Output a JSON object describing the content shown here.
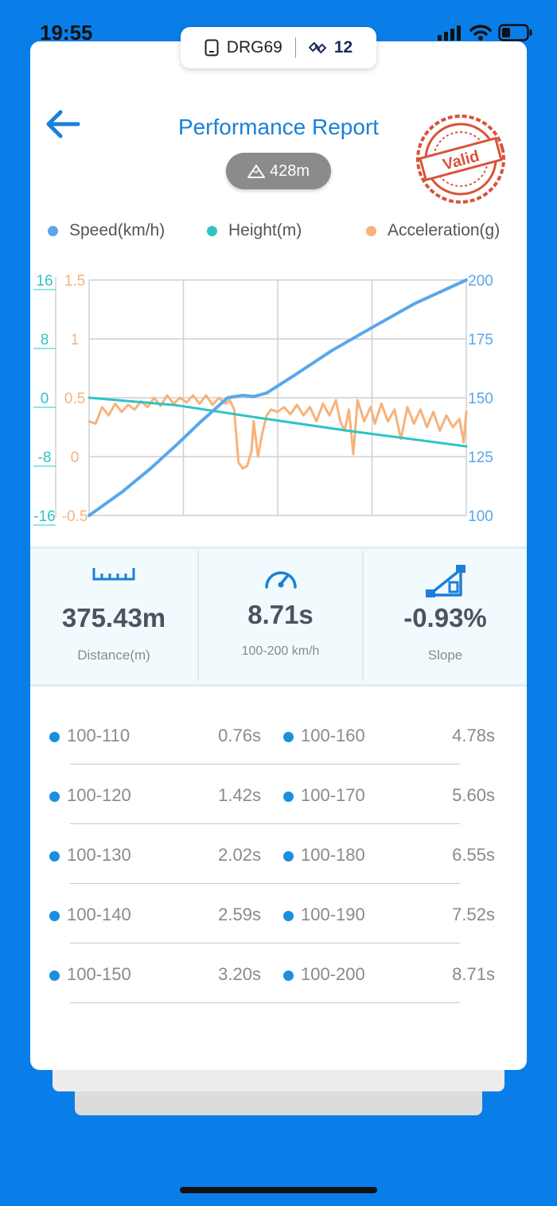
{
  "status_bar": {
    "time": "19:55"
  },
  "device": {
    "name": "DRG69",
    "satellites": "12"
  },
  "header": {
    "title": "Performance Report",
    "stamp_text": "Valid",
    "altitude": "428m"
  },
  "colors": {
    "speed": "#5aa7ea",
    "height": "#2ec4c4",
    "acceleration": "#f7b27a",
    "accent": "#1b7fd8",
    "background": "#0a7ee8"
  },
  "legend": [
    {
      "label": "Speed(km/h)",
      "color": "#5aa7ea"
    },
    {
      "label": "Height(m)",
      "color": "#2ec4c4"
    },
    {
      "label": "Acceleration(g)",
      "color": "#f7b27a"
    }
  ],
  "chart_data": {
    "type": "line",
    "x_range": [
      0,
      8.71
    ],
    "grid": true,
    "axes": {
      "height": {
        "ticks": [
          "16",
          "8",
          "0",
          "-8",
          "-16"
        ],
        "range": [
          -16,
          16
        ]
      },
      "acceleration": {
        "ticks": [
          "1.5",
          "1",
          "0.5",
          "0",
          "-0.5"
        ],
        "range": [
          -0.5,
          1.5
        ]
      },
      "speed": {
        "ticks": [
          "200",
          "175",
          "150",
          "125",
          "100"
        ],
        "range": [
          100,
          200
        ]
      }
    },
    "series": [
      {
        "name": "Speed(km/h)",
        "axis": "speed",
        "points": [
          [
            0,
            100
          ],
          [
            0.76,
            110
          ],
          [
            1.42,
            120
          ],
          [
            2.02,
            130
          ],
          [
            2.59,
            140
          ],
          [
            3.2,
            150
          ],
          [
            3.55,
            151
          ],
          [
            3.8,
            150.5
          ],
          [
            4.1,
            152
          ],
          [
            4.78,
            160
          ],
          [
            5.6,
            170
          ],
          [
            6.55,
            180
          ],
          [
            7.52,
            190
          ],
          [
            8.71,
            200
          ]
        ]
      },
      {
        "name": "Height(m)",
        "axis": "height",
        "points": [
          [
            0,
            0
          ],
          [
            2,
            -1
          ],
          [
            4,
            -2.8
          ],
          [
            6,
            -4.5
          ],
          [
            8.71,
            -6.6
          ]
        ]
      },
      {
        "name": "Acceleration(g)",
        "axis": "acceleration",
        "points": [
          [
            0,
            0.3
          ],
          [
            0.15,
            0.28
          ],
          [
            0.3,
            0.42
          ],
          [
            0.45,
            0.35
          ],
          [
            0.6,
            0.45
          ],
          [
            0.75,
            0.38
          ],
          [
            0.9,
            0.44
          ],
          [
            1.05,
            0.4
          ],
          [
            1.2,
            0.47
          ],
          [
            1.35,
            0.42
          ],
          [
            1.5,
            0.5
          ],
          [
            1.65,
            0.43
          ],
          [
            1.8,
            0.52
          ],
          [
            1.95,
            0.45
          ],
          [
            2.1,
            0.5
          ],
          [
            2.25,
            0.46
          ],
          [
            2.4,
            0.52
          ],
          [
            2.55,
            0.45
          ],
          [
            2.7,
            0.52
          ],
          [
            2.85,
            0.44
          ],
          [
            3.0,
            0.5
          ],
          [
            3.15,
            0.45
          ],
          [
            3.25,
            0.48
          ],
          [
            3.35,
            0.4
          ],
          [
            3.45,
            -0.05
          ],
          [
            3.55,
            -0.1
          ],
          [
            3.65,
            -0.08
          ],
          [
            3.75,
            0.05
          ],
          [
            3.8,
            0.3
          ],
          [
            3.9,
            0.0
          ],
          [
            4.0,
            0.2
          ],
          [
            4.1,
            0.35
          ],
          [
            4.2,
            0.4
          ],
          [
            4.35,
            0.38
          ],
          [
            4.5,
            0.42
          ],
          [
            4.65,
            0.36
          ],
          [
            4.8,
            0.44
          ],
          [
            4.95,
            0.35
          ],
          [
            5.1,
            0.42
          ],
          [
            5.25,
            0.3
          ],
          [
            5.4,
            0.45
          ],
          [
            5.55,
            0.35
          ],
          [
            5.7,
            0.48
          ],
          [
            5.8,
            0.3
          ],
          [
            5.9,
            0.22
          ],
          [
            6.0,
            0.4
          ],
          [
            6.1,
            0.02
          ],
          [
            6.2,
            0.48
          ],
          [
            6.35,
            0.3
          ],
          [
            6.5,
            0.42
          ],
          [
            6.6,
            0.28
          ],
          [
            6.75,
            0.45
          ],
          [
            6.9,
            0.3
          ],
          [
            7.05,
            0.4
          ],
          [
            7.2,
            0.15
          ],
          [
            7.35,
            0.42
          ],
          [
            7.5,
            0.28
          ],
          [
            7.65,
            0.4
          ],
          [
            7.8,
            0.25
          ],
          [
            7.95,
            0.38
          ],
          [
            8.1,
            0.22
          ],
          [
            8.25,
            0.35
          ],
          [
            8.4,
            0.25
          ],
          [
            8.55,
            0.32
          ],
          [
            8.65,
            0.12
          ],
          [
            8.71,
            0.38
          ]
        ]
      }
    ]
  },
  "stats": [
    {
      "value": "375.43m",
      "label": "Distance(m)",
      "icon": "ruler-icon"
    },
    {
      "value": "8.71s",
      "label": "100-200 km/h",
      "icon": "speedometer-icon"
    },
    {
      "value": "-0.93%",
      "label": "Slope",
      "icon": "slope-icon"
    }
  ],
  "splits": [
    {
      "left": {
        "range": "100-110",
        "time": "0.76s"
      },
      "right": {
        "range": "100-160",
        "time": "4.78s"
      }
    },
    {
      "left": {
        "range": "100-120",
        "time": "1.42s"
      },
      "right": {
        "range": "100-170",
        "time": "5.60s"
      }
    },
    {
      "left": {
        "range": "100-130",
        "time": "2.02s"
      },
      "right": {
        "range": "100-180",
        "time": "6.55s"
      }
    },
    {
      "left": {
        "range": "100-140",
        "time": "2.59s"
      },
      "right": {
        "range": "100-190",
        "time": "7.52s"
      }
    },
    {
      "left": {
        "range": "100-150",
        "time": "3.20s"
      },
      "right": {
        "range": "100-200",
        "time": "8.71s"
      }
    }
  ]
}
